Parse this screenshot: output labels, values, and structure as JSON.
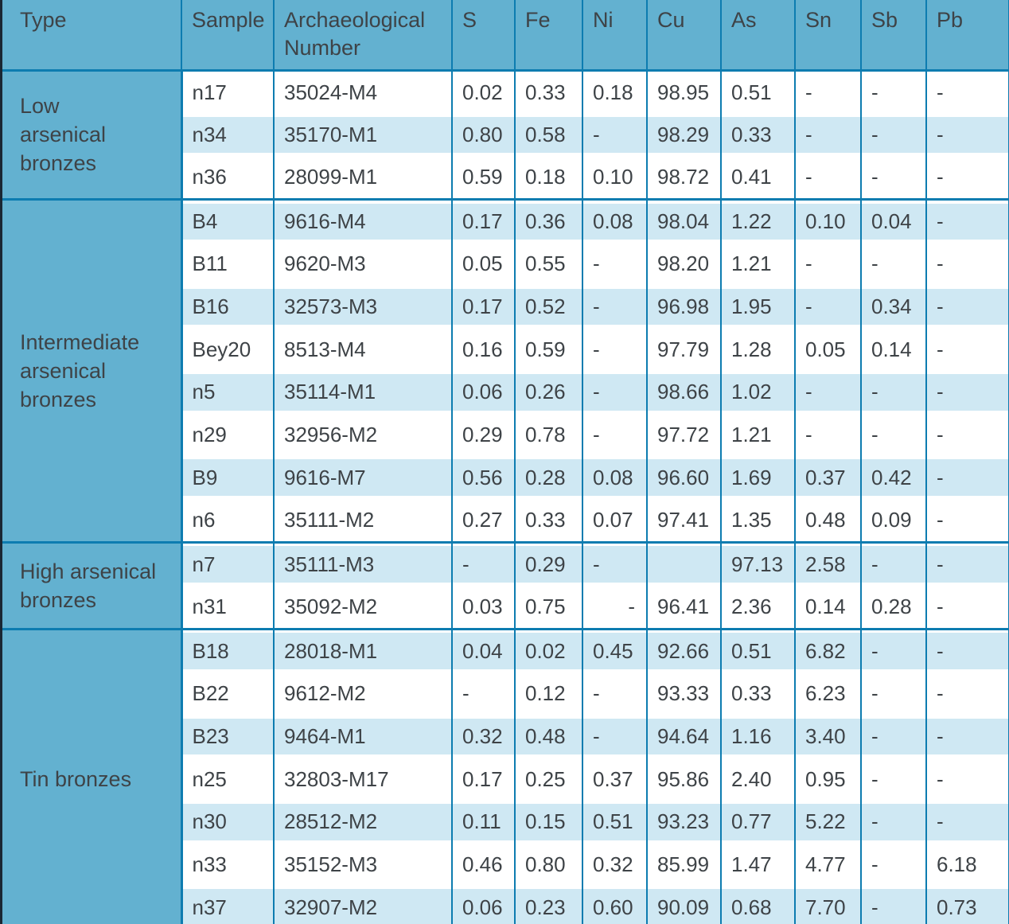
{
  "colors": {
    "header_teal": "#63b1d0",
    "row_alternate_blue": "#cfe8f3",
    "grid_border_blue": "#0d7cb0",
    "outer_left_border_dark": "#1a2733",
    "text": "#3e4347"
  },
  "table": {
    "columns": [
      "Type",
      "Sample",
      "Archaeological Number",
      "S",
      "Fe",
      "Ni",
      "Cu",
      "As",
      "Sn",
      "Sb",
      "Pb"
    ],
    "groups": [
      {
        "type_label": "Low arsenical bronzes",
        "type_lines": [
          "Low",
          "arsenical",
          "bronzes"
        ],
        "rows": [
          {
            "sample": "n17",
            "arch": "35024-M4",
            "vals": [
              "0.02",
              "0.33",
              "0.18",
              "98.95",
              "0.51",
              "-",
              "-",
              "-"
            ]
          },
          {
            "sample": "n34",
            "arch": "35170-M1",
            "vals": [
              "0.80",
              "0.58",
              "-",
              "98.29",
              "0.33",
              "-",
              "-",
              "-"
            ]
          },
          {
            "sample": "n36",
            "arch": "28099-M1",
            "vals": [
              "0.59",
              "0.18",
              "0.10",
              "98.72",
              "0.41",
              "-",
              "-",
              "-"
            ]
          }
        ]
      },
      {
        "type_label": "Intermediate arsenical bronzes",
        "type_lines": [
          "Intermediate",
          "arsenical",
          "bronzes"
        ],
        "rows": [
          {
            "sample": "B4",
            "arch": "9616-M4",
            "vals": [
              "0.17",
              "0.36",
              "0.08",
              "98.04",
              "1.22",
              "0.10",
              "0.04",
              "-"
            ]
          },
          {
            "sample": "B11",
            "arch": "9620-M3",
            "vals": [
              "0.05",
              "0.55",
              "-",
              "98.20",
              "1.21",
              "-",
              "-",
              "-"
            ]
          },
          {
            "sample": "B16",
            "arch": "32573-M3",
            "vals": [
              "0.17",
              "0.52",
              "-",
              "96.98",
              "1.95",
              "-",
              "0.34",
              "-"
            ]
          },
          {
            "sample": "Bey20",
            "arch": "8513-M4",
            "vals": [
              "0.16",
              "0.59",
              "-",
              "97.79",
              "1.28",
              "0.05",
              "0.14",
              "-"
            ]
          },
          {
            "sample": "n5",
            "arch": "35114-M1",
            "vals": [
              "0.06",
              "0.26",
              "-",
              "98.66",
              "1.02",
              "-",
              "-",
              "-"
            ]
          },
          {
            "sample": "n29",
            "arch": "32956-M2",
            "vals": [
              "0.29",
              "0.78",
              "-",
              "97.72",
              "1.21",
              "-",
              "-",
              "-"
            ]
          },
          {
            "sample": "B9",
            "arch": "9616-M7",
            "vals": [
              "0.56",
              "0.28",
              "0.08",
              "96.60",
              "1.69",
              "0.37",
              "0.42",
              "-"
            ]
          },
          {
            "sample": "n6",
            "arch": "35111-M2",
            "vals": [
              "0.27",
              "0.33",
              "0.07",
              "97.41",
              "1.35",
              "0.48",
              "0.09",
              "-"
            ]
          }
        ]
      },
      {
        "type_label": "High arsenical bronzes",
        "type_lines": [
          "High arsenical",
          "bronzes"
        ],
        "rows": [
          {
            "sample": "n7",
            "arch": "35111-M3",
            "vals": [
              "-",
              "0.29",
              "-",
              "",
              "97.13",
              "2.58",
              "-",
              "-"
            ]
          },
          {
            "sample": "n31",
            "arch": "35092-M2",
            "vals": [
              "0.03",
              "0.75",
              {
                "v": "-",
                "align": "right"
              },
              "96.41",
              "2.36",
              "0.14",
              "0.28",
              "-"
            ]
          }
        ]
      },
      {
        "type_label": "Tin bronzes",
        "type_lines": [
          "Tin bronzes"
        ],
        "rows": [
          {
            "sample": "B18",
            "arch": "28018-M1",
            "vals": [
              "0.04",
              "0.02",
              "0.45",
              "92.66",
              "0.51",
              "6.82",
              "-",
              "-"
            ]
          },
          {
            "sample": "B22",
            "arch": "9612-M2",
            "vals": [
              "-",
              "0.12",
              "-",
              "93.33",
              "0.33",
              "6.23",
              "-",
              "-"
            ]
          },
          {
            "sample": "B23",
            "arch": "9464-M1",
            "vals": [
              "0.32",
              "0.48",
              "-",
              "94.64",
              "1.16",
              "3.40",
              "-",
              "-"
            ]
          },
          {
            "sample": "n25",
            "arch": "32803-M17",
            "vals": [
              "0.17",
              "0.25",
              "0.37",
              "95.86",
              "2.40",
              "0.95",
              "-",
              "-"
            ]
          },
          {
            "sample": "n30",
            "arch": "28512-M2",
            "vals": [
              "0.11",
              "0.15",
              "0.51",
              "93.23",
              "0.77",
              "5.22",
              "-",
              "-"
            ]
          },
          {
            "sample": "n33",
            "arch": "35152-M3",
            "vals": [
              "0.46",
              "0.80",
              "0.32",
              "85.99",
              "1.47",
              "4.77",
              "-",
              "6.18"
            ]
          },
          {
            "sample": "n37",
            "arch": "32907-M2",
            "vals": [
              "0.06",
              "0.23",
              "0.60",
              "90.09",
              "0.68",
              "7.70",
              "-",
              "0.73"
            ]
          }
        ]
      }
    ]
  }
}
